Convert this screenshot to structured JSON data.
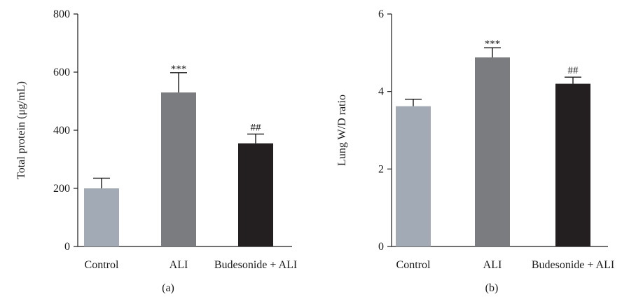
{
  "chart_data": [
    {
      "type": "bar",
      "panel_label": "(a)",
      "categories": [
        "Control",
        "ALI",
        "Budesonide + ALI"
      ],
      "values": [
        200,
        530,
        355
      ],
      "errors": [
        35,
        68,
        32
      ],
      "significance": [
        "",
        "***",
        "##"
      ],
      "colors": [
        "#a2abb5",
        "#7b7c80",
        "#231f20"
      ],
      "ylabel": "Total protein (μg/mL)",
      "ylim": [
        0,
        800
      ],
      "yticks": [
        0,
        200,
        400,
        600,
        800
      ],
      "ytick_labels": [
        "0",
        "200",
        "400",
        "600",
        "800"
      ],
      "grid": false
    },
    {
      "type": "bar",
      "panel_label": "(b)",
      "categories": [
        "Control",
        "ALI",
        "Budesonide + ALI"
      ],
      "values": [
        3.62,
        4.88,
        4.2
      ],
      "errors": [
        0.18,
        0.25,
        0.17
      ],
      "significance": [
        "",
        "***",
        "##"
      ],
      "colors": [
        "#a2abb5",
        "#7b7c80",
        "#231f20"
      ],
      "ylabel": "Lung W/D ratio",
      "ylim": [
        0,
        6
      ],
      "yticks": [
        0,
        2,
        4,
        6
      ],
      "ytick_labels": [
        "0",
        "2",
        "4",
        "6"
      ],
      "grid": false
    }
  ]
}
